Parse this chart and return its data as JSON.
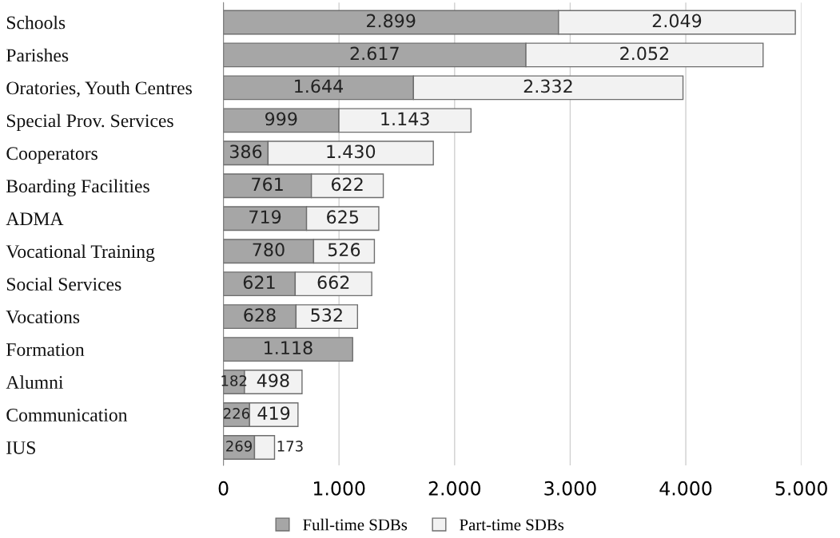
{
  "chart_data": {
    "type": "bar",
    "orientation": "horizontal",
    "stacked": true,
    "categories": [
      "Schools",
      "Parishes",
      "Oratories, Youth Centres",
      "Special Prov. Services",
      "Cooperators",
      "Boarding Facilities",
      "ADMA",
      "Vocational Training",
      "Social Services",
      "Vocations",
      "Formation",
      "Alumni",
      "Communication",
      "IUS"
    ],
    "series": [
      {
        "name": "Full-time SDBs",
        "color": "#a6a6a6",
        "values": [
          2899,
          2617,
          1644,
          999,
          386,
          761,
          719,
          780,
          621,
          628,
          1118,
          182,
          226,
          269
        ],
        "value_labels": [
          "2.899",
          "2.617",
          "1.644",
          "999",
          "386",
          "761",
          "719",
          "780",
          "621",
          "628",
          "1.118",
          "182",
          "226",
          "269"
        ]
      },
      {
        "name": "Part-time SDBs",
        "color": "#f2f2f2",
        "values": [
          2049,
          2052,
          2332,
          1143,
          1430,
          622,
          625,
          526,
          662,
          532,
          null,
          498,
          419,
          173
        ],
        "value_labels": [
          "2.049",
          "2.052",
          "2.332",
          "1.143",
          "1.430",
          "622",
          "625",
          "526",
          "662",
          "532",
          null,
          "498",
          "419",
          "173"
        ]
      }
    ],
    "xlim": [
      0,
      5000
    ],
    "xticks": [
      {
        "value": 0,
        "label": "0"
      },
      {
        "value": 1000,
        "label": "1.000"
      },
      {
        "value": 2000,
        "label": "2.000"
      },
      {
        "value": 3000,
        "label": "3.000"
      },
      {
        "value": 4000,
        "label": "4.000"
      },
      {
        "value": 5000,
        "label": "5.000"
      }
    ],
    "grid": "x",
    "legend": "bottom"
  }
}
